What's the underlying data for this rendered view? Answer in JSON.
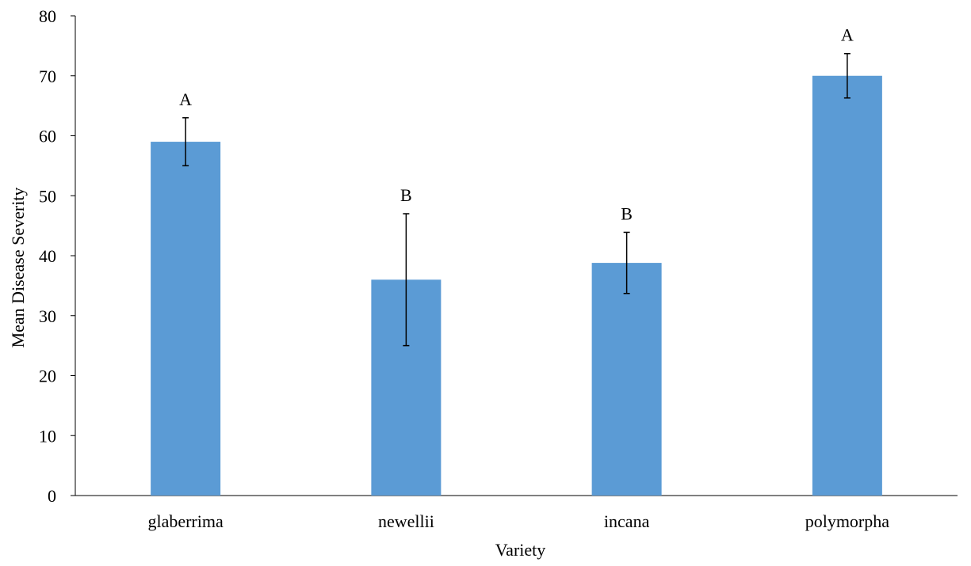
{
  "chart_data": {
    "type": "bar",
    "title": "",
    "xlabel": "Variety",
    "ylabel": "Mean Disease Severity",
    "categories": [
      "glaberrima",
      "newellii",
      "incana",
      "polymorpha"
    ],
    "values": [
      59,
      36,
      38.8,
      70
    ],
    "error_bars": [
      {
        "low": 55,
        "high": 63
      },
      {
        "low": 25,
        "high": 47
      },
      {
        "low": 33.7,
        "high": 43.9
      },
      {
        "low": 66.3,
        "high": 73.7
      }
    ],
    "significance_letters": [
      "A",
      "B",
      "B",
      "A"
    ],
    "ylim": [
      0,
      80
    ],
    "yticks": [
      0,
      10,
      20,
      30,
      40,
      50,
      60,
      70,
      80
    ],
    "grid": false,
    "legend": "none",
    "bar_color": "#5b9bd5"
  }
}
